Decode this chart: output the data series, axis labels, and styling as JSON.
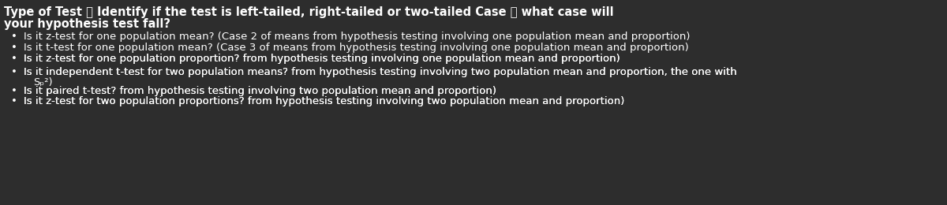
{
  "background_color": "#2d2d2d",
  "text_color": "#ffffff",
  "bullet_color": "#ffffff",
  "link_color": "#6666cc",
  "title_line1": "Type of Test ① Identify if the test is left-tailed, right-tailed or two-tailed Case ② what case will",
  "title_line2": "your hypothesis test fall?",
  "bullets": [
    {
      "text": "Is it z-test for one population mean? (Case 2 of means from hypothesis testing involving one population mean and proportion)",
      "has_link": false,
      "link_word": ""
    },
    {
      "text": "Is it t-test for one population mean? (Case 3 of means from hypothesis testing involving one population mean and proportion)",
      "has_link": false,
      "link_word": ""
    },
    {
      "text": "Is it z-test for one population proportion? (from hypothesis testing involving one population mean and proportion)",
      "has_link": true,
      "link_word": "from"
    },
    {
      "text": "Is it independent t-test for two population means? (from hypothesis testing involving two population mean and proportion, the one with",
      "text2": "Sₚ²)",
      "has_link": true,
      "link_word": "from"
    },
    {
      "text": "Is it paired t-test? (from hypothesis testing involving two population mean and proportion)",
      "has_link": true,
      "link_word": "from"
    },
    {
      "text": "Is it z-test for two population proportions? (from hypothesis testing involving two population mean and proportion)",
      "has_link": true,
      "link_word": "from"
    }
  ],
  "font_size_title": 10.5,
  "font_size_bullet": 9.5,
  "font_family": "DejaVu Sans"
}
